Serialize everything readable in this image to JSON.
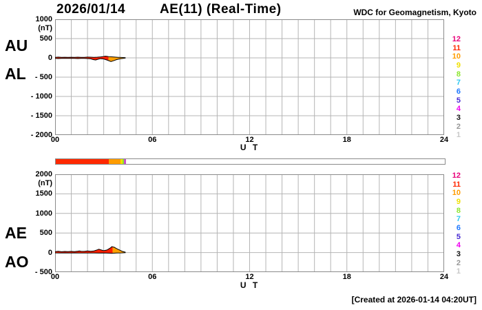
{
  "header": {
    "date": "2026/01/14",
    "title": "AE(11) (Real-Time)",
    "source": "WDC for Geomagnetism, Kyoto"
  },
  "footer": {
    "created": "[Created at 2026-01-14 04:20UT]"
  },
  "colors": {
    "grid": "#b4b4b4",
    "frame": "#8a8a8a",
    "trace_outline": "#000000",
    "fill_red": "#ff2000",
    "fill_orange": "#ffa000"
  },
  "legend": {
    "station_numbers": [
      {
        "label": "12",
        "color": "#e8007a"
      },
      {
        "label": "11",
        "color": "#ff2800"
      },
      {
        "label": "10",
        "color": "#ff9c00"
      },
      {
        "label": "9",
        "color": "#f0e000"
      },
      {
        "label": "8",
        "color": "#8ce62e"
      },
      {
        "label": "7",
        "color": "#30c8f0"
      },
      {
        "label": "6",
        "color": "#1e78ff"
      },
      {
        "label": "5",
        "color": "#4628d2"
      },
      {
        "label": "4",
        "color": "#f000f0"
      },
      {
        "label": "3",
        "color": "#141414"
      },
      {
        "label": "2",
        "color": "#969696"
      },
      {
        "label": "1",
        "color": "#c8c8c8"
      }
    ]
  },
  "station_bar": {
    "t_max": 24,
    "segments": [
      {
        "t0": 0.0,
        "t1": 3.25,
        "color": "#ff2800"
      },
      {
        "t0": 3.25,
        "t1": 4.0,
        "color": "#ff9c00"
      },
      {
        "t0": 4.0,
        "t1": 4.13,
        "color": "#f0e000"
      },
      {
        "t0": 4.13,
        "t1": 4.22,
        "color": "#8ce62e"
      },
      {
        "t0": 4.22,
        "t1": 4.33,
        "color": "#c850c8"
      }
    ]
  },
  "chart_data": [
    {
      "type": "area",
      "title": "AU / AL indices",
      "xlabel": "U T",
      "ylabel": "(nT)",
      "xlim": [
        0,
        24
      ],
      "ylim": [
        -2000,
        1000
      ],
      "x_major_ticks": [
        0,
        6,
        12,
        18,
        24
      ],
      "x_major_labels": [
        "00",
        "06",
        "12",
        "18",
        "24"
      ],
      "x_minor_step": 1,
      "y_ticks": [
        1000,
        500,
        0,
        -500,
        -1000,
        -1500,
        -2000
      ],
      "y_tick_labels": [
        "1000",
        "500",
        "0",
        "- 500",
        "- 1000",
        "- 1500",
        "- 2000"
      ],
      "y_unit": "(nT)",
      "left_labels": [
        "AU",
        "AL"
      ],
      "grid": true,
      "fill_split_t": 3.3,
      "series": [
        {
          "name": "AU",
          "x": [
            0,
            0.2,
            0.4,
            0.6,
            0.8,
            1.0,
            1.2,
            1.4,
            1.6,
            1.8,
            2.0,
            2.2,
            2.4,
            2.6,
            2.8,
            3.0,
            3.1,
            3.2,
            3.3,
            3.5,
            3.7,
            3.9,
            4.1,
            4.33
          ],
          "y": [
            15,
            20,
            12,
            16,
            12,
            16,
            12,
            18,
            14,
            15,
            20,
            18,
            15,
            18,
            25,
            35,
            45,
            40,
            30,
            26,
            20,
            15,
            10,
            5
          ]
        },
        {
          "name": "AL",
          "x": [
            0,
            0.2,
            0.4,
            0.6,
            0.8,
            1.0,
            1.2,
            1.4,
            1.6,
            1.8,
            2.0,
            2.2,
            2.35,
            2.5,
            2.65,
            2.8,
            3.0,
            3.2,
            3.35,
            3.45,
            3.6,
            3.8,
            4.0,
            4.2,
            4.33
          ],
          "y": [
            -12,
            -18,
            -12,
            -15,
            -12,
            -15,
            -12,
            -18,
            -14,
            -15,
            -18,
            -25,
            -45,
            -55,
            -35,
            -22,
            -28,
            -55,
            -80,
            -95,
            -75,
            -45,
            -25,
            -12,
            -5
          ]
        }
      ]
    },
    {
      "type": "area",
      "title": "AE / AO indices",
      "xlabel": "U T",
      "ylabel": "(nT)",
      "xlim": [
        0,
        24
      ],
      "ylim": [
        -500,
        2000
      ],
      "x_major_ticks": [
        0,
        6,
        12,
        18,
        24
      ],
      "x_major_labels": [
        "00",
        "06",
        "12",
        "18",
        "24"
      ],
      "x_minor_step": 1,
      "y_ticks": [
        2000,
        1500,
        1000,
        500,
        0,
        -500
      ],
      "y_tick_labels": [
        "2000",
        "1500",
        "1000",
        "500",
        "0",
        "- 500"
      ],
      "y_unit": "(nT)",
      "left_labels": [
        "AE",
        "AO"
      ],
      "grid": true,
      "fill_split_t": 3.55,
      "series": [
        {
          "name": "AE",
          "x": [
            0,
            0.2,
            0.4,
            0.6,
            0.8,
            1.0,
            1.2,
            1.4,
            1.5,
            1.6,
            1.8,
            2.0,
            2.2,
            2.4,
            2.6,
            2.7,
            2.85,
            3.0,
            3.2,
            3.4,
            3.5,
            3.65,
            3.8,
            4.0,
            4.15,
            4.33
          ],
          "y": [
            25,
            32,
            22,
            28,
            24,
            30,
            25,
            36,
            42,
            34,
            30,
            40,
            34,
            42,
            68,
            85,
            65,
            48,
            65,
            115,
            150,
            135,
            100,
            60,
            30,
            10
          ]
        },
        {
          "name": "AO",
          "x": [
            0,
            0.3,
            0.6,
            0.9,
            1.2,
            1.5,
            1.8,
            2.1,
            2.4,
            2.7,
            3.0,
            3.3,
            3.5,
            3.8,
            4.1,
            4.33
          ],
          "y": [
            -8,
            -12,
            -8,
            -10,
            -8,
            -12,
            -10,
            -12,
            -10,
            -14,
            -10,
            -15,
            -20,
            -12,
            -8,
            -4
          ]
        }
      ]
    }
  ]
}
